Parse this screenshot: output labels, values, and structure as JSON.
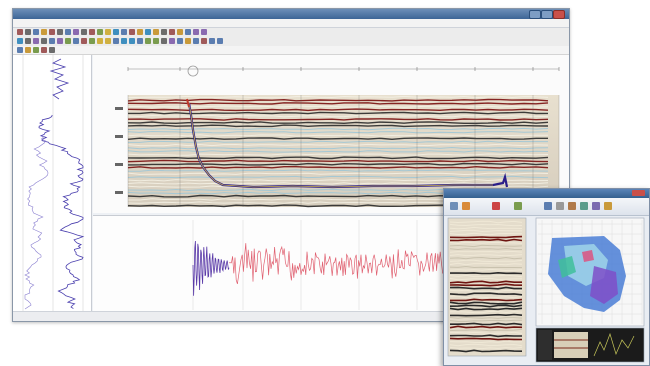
{
  "main_window": {
    "title": "",
    "menu": [
      "",
      "",
      "",
      "",
      "",
      "",
      ""
    ],
    "statusbar": {
      "left": "",
      "right": ""
    }
  },
  "inset_window": {
    "title": ""
  },
  "icons": {
    "toolbar_1": "toolbar-icon",
    "toolbar_2": "toolbar-icon",
    "ribbon": "ribbon-icon",
    "cursor": "circle-cursor-icon"
  },
  "colors": {
    "accent": "#3d6596",
    "seismic_peak": "#8a1414",
    "seismic_trough": "#e9e4d2",
    "horizon": "#2b1e8a",
    "wavelet_red": "#e06070",
    "wavelet_purple": "#5a3aa8",
    "log_curve": "#4a3fae"
  }
}
